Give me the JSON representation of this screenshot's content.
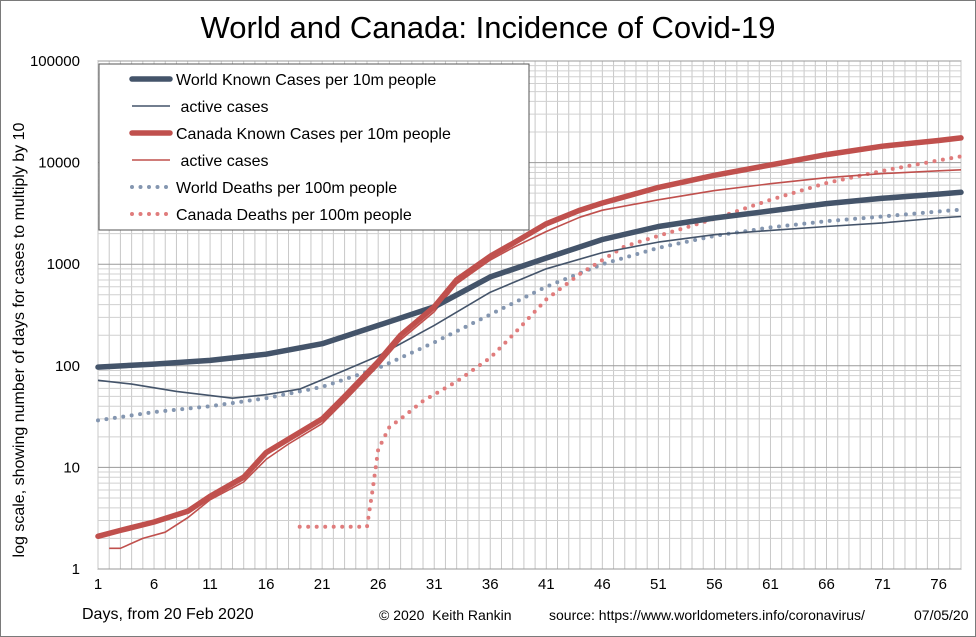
{
  "chart_data": {
    "type": "line",
    "title": "World and Canada: Incidence of Covid-19",
    "ylabel": "log scale, showing number of days for cases to multiply by 10",
    "xlabel": "Days, from 20 Feb 2020",
    "y_scale": "log",
    "ylim": [
      1,
      100000
    ],
    "xlim": [
      1,
      78
    ],
    "grid": true,
    "legend_position": "top-left",
    "x_ticks": [
      "1",
      "6",
      "11",
      "16",
      "21",
      "26",
      "31",
      "36",
      "41",
      "46",
      "51",
      "56",
      "61",
      "66",
      "71",
      "76"
    ],
    "y_ticks": [
      "1",
      "10",
      "100",
      "1000",
      "10000",
      "100000"
    ],
    "series": [
      {
        "name": "World Known Cases per 10m people",
        "color": "#44546a",
        "style": "thick",
        "x": [
          1,
          6,
          11,
          16,
          21,
          26,
          31,
          36,
          41,
          46,
          51,
          56,
          61,
          66,
          71,
          76,
          78
        ],
        "y": [
          97,
          104,
          113,
          130,
          165,
          250,
          380,
          750,
          1150,
          1750,
          2350,
          2850,
          3350,
          3950,
          4450,
          4900,
          5100
        ]
      },
      {
        "name": "active cases",
        "color": "#44546a",
        "style": "thin",
        "x": [
          1,
          4,
          8,
          13,
          16,
          19,
          23,
          26,
          31,
          36,
          41,
          46,
          51,
          56,
          61,
          66,
          71,
          76,
          78
        ],
        "y": [
          72,
          66,
          56,
          48,
          52,
          59,
          90,
          125,
          250,
          530,
          900,
          1300,
          1650,
          1950,
          2150,
          2350,
          2550,
          2850,
          2950
        ]
      },
      {
        "name": "Canada Known Cases per 10m people",
        "color": "#c0504d",
        "style": "thick",
        "x": [
          1,
          3,
          6,
          9,
          11,
          14,
          16,
          18,
          21,
          23,
          26,
          28,
          31,
          33,
          36,
          38,
          41,
          44,
          46,
          51,
          56,
          61,
          66,
          71,
          76,
          78
        ],
        "y": [
          2.1,
          2.4,
          2.9,
          3.7,
          5.2,
          8.0,
          14,
          19,
          30,
          50,
          110,
          200,
          380,
          700,
          1200,
          1600,
          2500,
          3400,
          4000,
          5700,
          7500,
          9500,
          12000,
          14500,
          16500,
          17500
        ]
      },
      {
        "name": "active cases",
        "color": "#c0504d",
        "style": "thin",
        "x": [
          2,
          3,
          5,
          7,
          9,
          11,
          14,
          16,
          18,
          21,
          23,
          26,
          28,
          31,
          33,
          36,
          38,
          41,
          44,
          46,
          51,
          56,
          61,
          66,
          71,
          76,
          78
        ],
        "y": [
          1.6,
          1.6,
          2.0,
          2.3,
          3.2,
          4.8,
          7.2,
          12,
          17,
          27,
          45,
          100,
          180,
          340,
          640,
          1100,
          1450,
          2100,
          2900,
          3400,
          4300,
          5300,
          6200,
          7100,
          7800,
          8300,
          8500
        ]
      },
      {
        "name": "World Deaths per 100m people",
        "color": "#8496b0",
        "style": "dots",
        "x": [
          1,
          6,
          11,
          16,
          21,
          26,
          31,
          36,
          41,
          46,
          51,
          56,
          61,
          66,
          71,
          76,
          78
        ],
        "y": [
          29,
          35,
          40,
          48,
          62,
          95,
          170,
          320,
          600,
          1000,
          1450,
          1900,
          2300,
          2650,
          2950,
          3300,
          3450
        ]
      },
      {
        "name": "Canada Deaths per 100m people",
        "color": "#e07c7c",
        "style": "dots",
        "x": [
          19,
          21,
          23,
          25,
          25.5,
          26,
          27,
          28,
          30,
          33,
          36,
          38,
          41,
          44,
          46,
          48,
          51,
          56,
          61,
          66,
          71,
          76,
          78
        ],
        "y": [
          2.6,
          2.6,
          2.6,
          2.6,
          6,
          15,
          25,
          30,
          45,
          70,
          120,
          200,
          450,
          800,
          1100,
          1500,
          1900,
          2800,
          4300,
          6300,
          8300,
          10500,
          11500
        ]
      }
    ]
  },
  "footer": {
    "x_label": "Days, from 20 Feb 2020",
    "credit": "© 2020  Keith Rankin",
    "source": "source:  https://www.worldometers.info/coronavirus/",
    "date": "07/05/20"
  }
}
